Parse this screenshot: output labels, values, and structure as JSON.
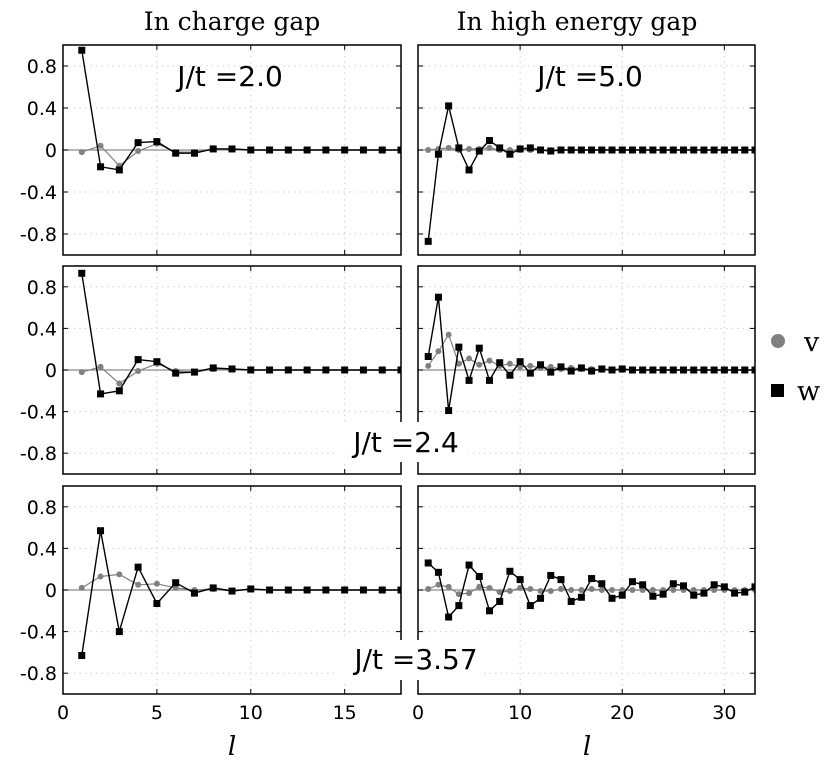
{
  "figure": {
    "col_titles": [
      "In charge gap",
      "In high energy gap"
    ],
    "legend": [
      {
        "label": "v",
        "marker": "circle",
        "color": "#808080"
      },
      {
        "label": "w",
        "marker": "square",
        "color": "#000000"
      }
    ],
    "xlabel": "l",
    "annotations": [
      "J/t =2.0",
      "J/t =5.0",
      "J/t =2.4",
      "J/t =3.57"
    ]
  },
  "chart_data": [
    {
      "type": "line",
      "panel": "row1-left",
      "annotation": "J/t =2.0",
      "xlim": [
        0,
        18
      ],
      "ylim": [
        -1.0,
        1.0
      ],
      "xticks": [
        0,
        5,
        10,
        15
      ],
      "xtick_labels": [
        "0",
        "5",
        "10",
        "15"
      ],
      "yticks": [
        0.8,
        0.4,
        0,
        -0.4,
        -0.8
      ],
      "ytick_labels": [
        "0.8",
        "0.4",
        "0",
        "-0.4",
        "-0.8"
      ],
      "x": [
        1,
        2,
        3,
        4,
        5,
        6,
        7,
        8,
        9,
        10,
        11,
        12,
        13,
        14,
        15,
        16,
        17,
        18
      ],
      "series": [
        {
          "name": "v",
          "color": "#808080",
          "marker": "circle",
          "values": [
            -0.02,
            0.04,
            -0.15,
            -0.01,
            0.06,
            -0.02,
            -0.02,
            0.01,
            0.01,
            0,
            0,
            0,
            0,
            0,
            0,
            0,
            0,
            0
          ]
        },
        {
          "name": "w",
          "color": "#000000",
          "marker": "square",
          "values": [
            0.95,
            -0.16,
            -0.19,
            0.07,
            0.08,
            -0.03,
            -0.03,
            0.01,
            0.01,
            0,
            0,
            0,
            0,
            0,
            0,
            0,
            0,
            0
          ]
        }
      ]
    },
    {
      "type": "line",
      "panel": "row1-right",
      "annotation": "J/t =5.0",
      "xlim": [
        0,
        33
      ],
      "ylim": [
        -1.0,
        1.0
      ],
      "xticks": [
        0,
        10,
        20,
        30
      ],
      "xtick_labels": [
        "0",
        "10",
        "20",
        "30"
      ],
      "yticks": [
        0.8,
        0.4,
        0,
        -0.4,
        -0.8
      ],
      "ytick_labels": [],
      "x": [
        1,
        2,
        3,
        4,
        5,
        6,
        7,
        8,
        9,
        10,
        11,
        12,
        13,
        14,
        15,
        16,
        17,
        18,
        19,
        20,
        21,
        22,
        23,
        24,
        25,
        26,
        27,
        28,
        29,
        30,
        31,
        32,
        33
      ],
      "series": [
        {
          "name": "v",
          "color": "#808080",
          "marker": "circle",
          "values": [
            0,
            0.01,
            0.02,
            0,
            0.01,
            0.01,
            0.02,
            0,
            0,
            0,
            0,
            0,
            0,
            0,
            0,
            0,
            0,
            0,
            0,
            0,
            0,
            0,
            0,
            0,
            0,
            0,
            0,
            0,
            0,
            0,
            0,
            0,
            0
          ]
        },
        {
          "name": "w",
          "color": "#000000",
          "marker": "square",
          "values": [
            -0.87,
            -0.04,
            0.42,
            0.02,
            -0.19,
            -0.01,
            0.09,
            0.02,
            -0.04,
            0.01,
            0.02,
            0,
            -0.01,
            0,
            0,
            0,
            0,
            0,
            0,
            0,
            0,
            0,
            0,
            0,
            0,
            0,
            0,
            0,
            0,
            0,
            0,
            0,
            0
          ]
        }
      ]
    },
    {
      "type": "line",
      "panel": "row2-left",
      "annotation": "J/t =2.4",
      "xlim": [
        0,
        18
      ],
      "ylim": [
        -1.0,
        1.0
      ],
      "xticks": [
        0,
        5,
        10,
        15
      ],
      "xtick_labels": [
        "0",
        "5",
        "10",
        "15"
      ],
      "yticks": [
        0.8,
        0.4,
        0,
        -0.4,
        -0.8
      ],
      "ytick_labels": [
        "0.8",
        "0.4",
        "0",
        "-0.4",
        "-0.8"
      ],
      "x": [
        1,
        2,
        3,
        4,
        5,
        6,
        7,
        8,
        9,
        10,
        11,
        12,
        13,
        14,
        15,
        16,
        17,
        18
      ],
      "series": [
        {
          "name": "v",
          "color": "#808080",
          "marker": "circle",
          "values": [
            -0.02,
            0.03,
            -0.13,
            -0.01,
            0.06,
            -0.01,
            -0.02,
            0.01,
            0.01,
            0,
            0,
            0,
            0,
            0,
            0,
            0,
            0,
            0
          ]
        },
        {
          "name": "w",
          "color": "#000000",
          "marker": "square",
          "values": [
            0.93,
            -0.23,
            -0.2,
            0.1,
            0.08,
            -0.03,
            -0.02,
            0.02,
            0.01,
            0,
            0,
            0,
            0,
            0,
            0,
            0,
            0,
            0
          ]
        }
      ]
    },
    {
      "type": "line",
      "panel": "row2-right",
      "annotation": "J/t =2.4",
      "xlim": [
        0,
        33
      ],
      "ylim": [
        -1.0,
        1.0
      ],
      "xticks": [
        0,
        10,
        20,
        30
      ],
      "xtick_labels": [
        "0",
        "10",
        "20",
        "30"
      ],
      "yticks": [
        0.8,
        0.4,
        0,
        -0.4,
        -0.8
      ],
      "ytick_labels": [],
      "x": [
        1,
        2,
        3,
        4,
        5,
        6,
        7,
        8,
        9,
        10,
        11,
        12,
        13,
        14,
        15,
        16,
        17,
        18,
        19,
        20,
        21,
        22,
        23,
        24,
        25,
        26,
        27,
        28,
        29,
        30,
        31,
        32,
        33
      ],
      "series": [
        {
          "name": "v",
          "color": "#808080",
          "marker": "circle",
          "values": [
            0.04,
            0.18,
            0.34,
            0.06,
            0.11,
            0.05,
            0.09,
            0.04,
            0.06,
            0.03,
            0.04,
            0.02,
            0.03,
            0.01,
            0.02,
            0.01,
            0.01,
            0,
            0,
            0,
            0,
            0,
            0,
            0,
            0,
            0,
            0,
            0,
            0,
            0,
            0,
            0,
            0
          ]
        },
        {
          "name": "w",
          "color": "#000000",
          "marker": "square",
          "values": [
            0.13,
            0.7,
            -0.39,
            0.22,
            -0.1,
            0.21,
            -0.1,
            0.07,
            -0.05,
            0.08,
            -0.03,
            0.05,
            -0.02,
            0.03,
            -0.01,
            0.02,
            -0.01,
            0.01,
            0,
            0.01,
            0,
            0,
            0,
            0,
            0,
            0,
            0,
            0,
            0,
            0,
            0,
            0,
            0
          ]
        }
      ]
    },
    {
      "type": "line",
      "panel": "row3-left",
      "annotation": "J/t =3.57",
      "xlim": [
        0,
        18
      ],
      "ylim": [
        -1.0,
        1.0
      ],
      "xticks": [
        0,
        5,
        10,
        15
      ],
      "xtick_labels": [
        "0",
        "5",
        "10",
        "15"
      ],
      "yticks": [
        0.8,
        0.4,
        0,
        -0.4,
        -0.8
      ],
      "ytick_labels": [
        "0.8",
        "0.4",
        "0",
        "-0.4",
        "-0.8"
      ],
      "x": [
        1,
        2,
        3,
        4,
        5,
        6,
        7,
        8,
        9,
        10,
        11,
        12,
        13,
        14,
        15,
        16,
        17,
        18
      ],
      "series": [
        {
          "name": "v",
          "color": "#808080",
          "marker": "circle",
          "values": [
            0.02,
            0.13,
            0.15,
            0.05,
            0.06,
            0.02,
            0,
            0.01,
            -0.01,
            0.01,
            0,
            0,
            0,
            0,
            0,
            0,
            0,
            0
          ]
        },
        {
          "name": "w",
          "color": "#000000",
          "marker": "square",
          "values": [
            -0.63,
            0.57,
            -0.4,
            0.22,
            -0.13,
            0.07,
            -0.03,
            0.02,
            -0.01,
            0.01,
            0,
            0,
            0,
            0,
            0,
            0,
            0,
            0
          ]
        }
      ]
    },
    {
      "type": "line",
      "panel": "row3-right",
      "annotation": "J/t =3.57",
      "xlim": [
        0,
        33
      ],
      "ylim": [
        -1.0,
        1.0
      ],
      "xticks": [
        0,
        10,
        20,
        30
      ],
      "xtick_labels": [
        "0",
        "10",
        "20",
        "30"
      ],
      "yticks": [
        0.8,
        0.4,
        0,
        -0.4,
        -0.8
      ],
      "ytick_labels": [],
      "x": [
        1,
        2,
        3,
        4,
        5,
        6,
        7,
        8,
        9,
        10,
        11,
        12,
        13,
        14,
        15,
        16,
        17,
        18,
        19,
        20,
        21,
        22,
        23,
        24,
        25,
        26,
        27,
        28,
        29,
        30,
        31,
        32,
        33
      ],
      "series": [
        {
          "name": "v",
          "color": "#808080",
          "marker": "circle",
          "values": [
            0.01,
            0.05,
            0.03,
            -0.04,
            -0.03,
            0.03,
            0.02,
            -0.02,
            -0.01,
            0.02,
            0.01,
            -0.01,
            -0.01,
            0.01,
            0,
            0,
            0.01,
            0,
            0,
            0,
            0,
            0,
            0,
            0,
            0,
            0,
            0,
            0,
            0,
            0,
            0,
            0,
            0
          ]
        },
        {
          "name": "w",
          "color": "#000000",
          "marker": "square",
          "values": [
            0.26,
            0.17,
            -0.26,
            -0.15,
            0.24,
            0.13,
            -0.2,
            -0.11,
            0.18,
            0.1,
            -0.15,
            -0.08,
            0.14,
            0.1,
            -0.11,
            -0.07,
            0.11,
            0.06,
            -0.08,
            -0.05,
            0.08,
            0.05,
            -0.06,
            -0.04,
            0.06,
            0.04,
            -0.05,
            -0.03,
            0.05,
            0.03,
            -0.03,
            -0.02,
            0.03
          ]
        }
      ]
    }
  ]
}
